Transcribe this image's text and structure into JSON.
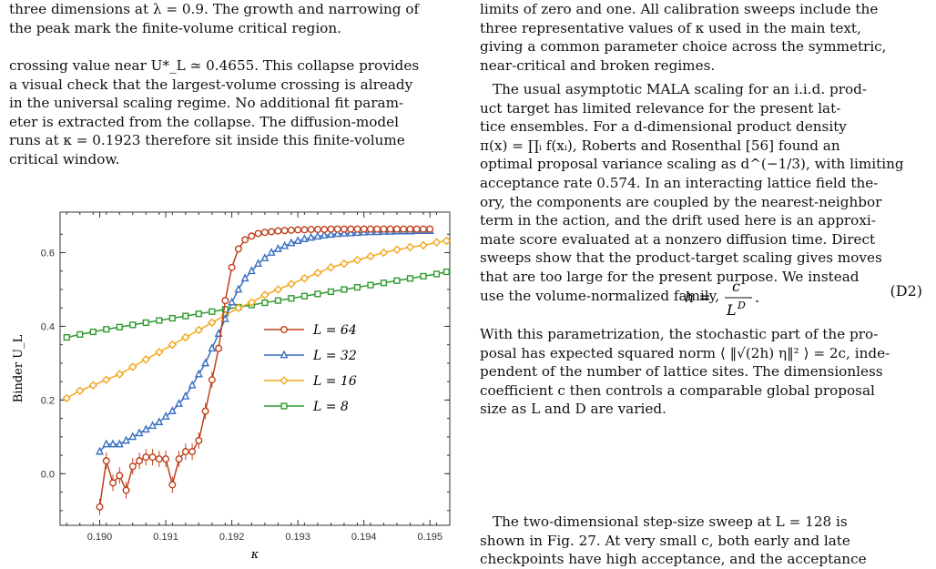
{
  "caption_tail": [
    "three dimensions at λ = 0.9. The growth and narrowing of",
    "the peak mark the finite-volume critical region."
  ],
  "left_paragraph": [
    "crossing value near U*_L ≃ 0.4655. This collapse provides",
    "a visual check that the largest-volume crossing is already",
    "in the universal scaling regime. No additional fit param-",
    "eter is extracted from the collapse. The diffusion-model",
    "runs at κ = 0.1923 therefore sit inside this finite-volume",
    "critical window."
  ],
  "right_top": [
    "limits of zero and one. All calibration sweeps include the",
    "three representative values of κ used in the main text,",
    "giving a common parameter choice across the symmetric,",
    "near-critical and broken regimes."
  ],
  "right_mid": [
    "The usual asymptotic MALA scaling for an i.i.d. prod-",
    "uct target has limited relevance for the present lat-",
    "tice ensembles.  For a d-dimensional product density",
    "π(x) = ∏ᵢ f(xᵢ), Roberts and Rosenthal [56] found an",
    "optimal proposal variance scaling as d^(−1/3), with limiting",
    "acceptance rate 0.574. In an interacting lattice field the-",
    "ory, the components are coupled by the nearest-neighbor",
    "term in the action, and the drift used here is an approxi-",
    "mate score evaluated at a nonzero diffusion time. Direct",
    "sweeps show that the product-target scaling gives moves",
    "that are too large for the present purpose. We instead",
    "use the volume-normalized family,"
  ],
  "equation": {
    "lhs": "h =",
    "num": "c",
    "den": "L^D",
    "den_base": "L",
    "den_sup": "D",
    "tail": ".",
    "label": "(D2)"
  },
  "right_low": [
    "With this parametrization, the stochastic part of the pro-",
    "posal has expected squared norm ⟨ ‖√(2h) η‖² ⟩ = 2c, inde-",
    "pendent of the number of lattice sites. The dimensionless",
    "coefficient c then controls a comparable global proposal",
    "size as L and D are varied."
  ],
  "right_last": [
    "The two-dimensional step-size sweep at L = 128 is",
    "shown in Fig. 27. At very small c, both early and late",
    "checkpoints have high acceptance, and the acceptance"
  ],
  "chart_data": {
    "type": "line",
    "xlabel": "κ",
    "ylabel": "Binder U_L",
    "xlim": [
      0.1894,
      0.1953
    ],
    "ylim": [
      -0.14,
      0.71
    ],
    "xticks": [
      0.19,
      0.191,
      0.192,
      0.193,
      0.194,
      0.195
    ],
    "xtick_labels": [
      "0.190",
      "0.191",
      "0.192",
      "0.193",
      "0.194",
      "0.195"
    ],
    "yticks": [
      0.0,
      0.2,
      0.4,
      0.6
    ],
    "ytick_labels": [
      "0.0",
      "0.2",
      "0.4",
      "0.6"
    ],
    "legend_position": "center-right",
    "grid": false,
    "series": [
      {
        "name": "L = 64",
        "color": "#c0401a",
        "marker": "circle",
        "x": [
          0.19,
          0.1901,
          0.1902,
          0.1903,
          0.1904,
          0.1905,
          0.1906,
          0.1907,
          0.1908,
          0.1909,
          0.191,
          0.1911,
          0.1912,
          0.1913,
          0.1914,
          0.1915,
          0.1916,
          0.1917,
          0.1918,
          0.1919,
          0.192,
          0.1921,
          0.1922,
          0.1923,
          0.1924,
          0.1925,
          0.1926,
          0.1927,
          0.1928,
          0.1929,
          0.193,
          0.1931,
          0.1932,
          0.1933,
          0.1934,
          0.1935,
          0.1936,
          0.1937,
          0.1938,
          0.1939,
          0.194,
          0.1941,
          0.1942,
          0.1943,
          0.1944,
          0.1945,
          0.1946,
          0.1947,
          0.1948,
          0.1949,
          0.195
        ],
        "y": [
          -0.09,
          0.035,
          -0.025,
          -0.005,
          -0.045,
          0.02,
          0.035,
          0.045,
          0.045,
          0.04,
          0.04,
          -0.03,
          0.04,
          0.06,
          0.06,
          0.09,
          0.17,
          0.255,
          0.34,
          0.47,
          0.56,
          0.61,
          0.635,
          0.645,
          0.652,
          0.655,
          0.657,
          0.659,
          0.66,
          0.661,
          0.662,
          0.662,
          0.663,
          0.663,
          0.663,
          0.664,
          0.664,
          0.664,
          0.664,
          0.664,
          0.664,
          0.664,
          0.664,
          0.664,
          0.664,
          0.664,
          0.664,
          0.664,
          0.664,
          0.664,
          0.664
        ]
      },
      {
        "name": "L = 32",
        "color": "#3a6fc0",
        "marker": "triangle",
        "x": [
          0.19,
          0.1901,
          0.1902,
          0.1903,
          0.1904,
          0.1905,
          0.1906,
          0.1907,
          0.1908,
          0.1909,
          0.191,
          0.1911,
          0.1912,
          0.1913,
          0.1914,
          0.1915,
          0.1916,
          0.1917,
          0.1918,
          0.1919,
          0.192,
          0.1921,
          0.1922,
          0.1923,
          0.1924,
          0.1925,
          0.1926,
          0.1927,
          0.1928,
          0.1929,
          0.193,
          0.1931,
          0.1932,
          0.1933,
          0.1934,
          0.1935,
          0.1936,
          0.1937,
          0.1938,
          0.1939,
          0.194,
          0.1941,
          0.1942,
          0.1943,
          0.1944,
          0.1945,
          0.1946,
          0.1947,
          0.1948,
          0.1949,
          0.195
        ],
        "y": [
          0.06,
          0.08,
          0.08,
          0.08,
          0.09,
          0.1,
          0.11,
          0.12,
          0.13,
          0.14,
          0.155,
          0.17,
          0.19,
          0.21,
          0.24,
          0.27,
          0.3,
          0.34,
          0.38,
          0.42,
          0.465,
          0.5,
          0.53,
          0.55,
          0.57,
          0.585,
          0.6,
          0.61,
          0.618,
          0.626,
          0.632,
          0.637,
          0.641,
          0.644,
          0.647,
          0.649,
          0.651,
          0.652,
          0.653,
          0.654,
          0.655,
          0.656,
          0.656,
          0.657,
          0.657,
          0.658,
          0.658,
          0.658,
          0.659,
          0.659,
          0.659
        ]
      },
      {
        "name": "L = 16",
        "color": "#f2a81d",
        "marker": "diamond",
        "x": [
          0.1895,
          0.1897,
          0.1899,
          0.1901,
          0.1903,
          0.1905,
          0.1907,
          0.1909,
          0.1911,
          0.1913,
          0.1915,
          0.1917,
          0.1919,
          0.1921,
          0.1923,
          0.1925,
          0.1927,
          0.1929,
          0.1931,
          0.1933,
          0.1935,
          0.1937,
          0.1939,
          0.1941,
          0.1943,
          0.1945,
          0.1947,
          0.1949,
          0.1951,
          0.19525
        ],
        "y": [
          0.205,
          0.225,
          0.24,
          0.255,
          0.27,
          0.29,
          0.31,
          0.33,
          0.35,
          0.37,
          0.39,
          0.41,
          0.43,
          0.45,
          0.465,
          0.485,
          0.5,
          0.515,
          0.53,
          0.545,
          0.56,
          0.57,
          0.58,
          0.59,
          0.6,
          0.608,
          0.615,
          0.62,
          0.628,
          0.632
        ]
      },
      {
        "name": "L = 8",
        "color": "#2f9a2f",
        "marker": "square",
        "x": [
          0.1895,
          0.1897,
          0.1899,
          0.1901,
          0.1903,
          0.1905,
          0.1907,
          0.1909,
          0.1911,
          0.1913,
          0.1915,
          0.1917,
          0.1919,
          0.1921,
          0.1923,
          0.1925,
          0.1927,
          0.1929,
          0.1931,
          0.1933,
          0.1935,
          0.1937,
          0.1939,
          0.1941,
          0.1943,
          0.1945,
          0.1947,
          0.1949,
          0.1951,
          0.19525
        ],
        "y": [
          0.37,
          0.378,
          0.385,
          0.392,
          0.398,
          0.404,
          0.41,
          0.416,
          0.422,
          0.428,
          0.434,
          0.44,
          0.446,
          0.452,
          0.458,
          0.464,
          0.47,
          0.476,
          0.482,
          0.488,
          0.494,
          0.5,
          0.506,
          0.512,
          0.518,
          0.524,
          0.53,
          0.536,
          0.542,
          0.548
        ]
      }
    ]
  }
}
